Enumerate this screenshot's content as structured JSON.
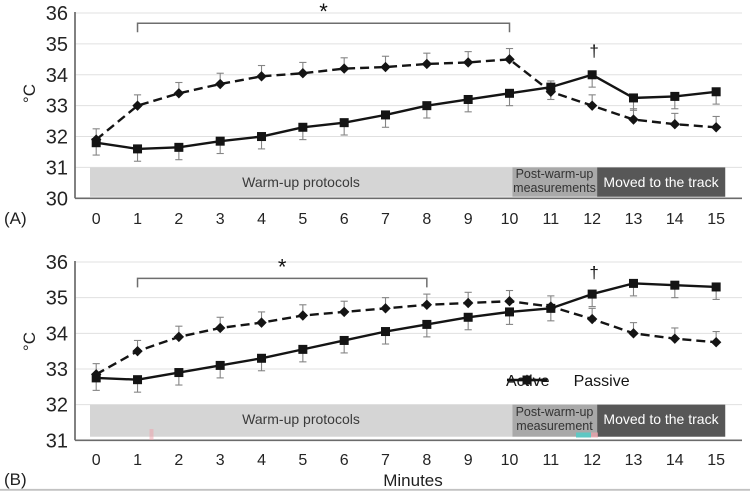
{
  "figure": {
    "xlabel": "Minutes"
  },
  "colors": {
    "series": "#141414",
    "error_bar": "#858585",
    "grid": "#e0e0e0",
    "axis": "#6b6b6b",
    "band_light": "#d5d5d5",
    "band_mid": "#a9a9a9",
    "band_dark": "#575757",
    "bracket": "#6e6e6e",
    "text": "#242424",
    "annotation": "#111111",
    "artifact_teal": "#5ec7c3",
    "artifact_pink": "#f0a0aa",
    "bottom_rule": "#c2c2c2"
  },
  "legend": {
    "items": [
      {
        "label": "Active",
        "marker": "square",
        "line": "solid"
      },
      {
        "label": "Passive",
        "marker": "diamond",
        "line": "dashed"
      }
    ]
  },
  "chart_data": [
    {
      "type": "line",
      "panel_label": "(A)",
      "ylabel": "°C",
      "x": [
        0,
        1,
        2,
        3,
        4,
        5,
        6,
        7,
        8,
        9,
        10,
        11,
        12,
        13,
        14,
        15
      ],
      "ylim": [
        30,
        36
      ],
      "yticks": [
        30,
        31,
        32,
        33,
        34,
        35,
        36
      ],
      "grid": true,
      "legend_position": "none",
      "series": [
        {
          "name": "Active",
          "marker": "square",
          "line": "solid",
          "error_direction": "down",
          "error": 0.4,
          "values": [
            31.8,
            31.6,
            31.65,
            31.85,
            32.0,
            32.3,
            32.45,
            32.7,
            33.0,
            33.2,
            33.4,
            33.6,
            34.0,
            33.25,
            33.3,
            33.45
          ]
        },
        {
          "name": "Passive",
          "marker": "diamond",
          "line": "dashed",
          "error_direction": "up",
          "error": 0.35,
          "values": [
            31.9,
            33.0,
            33.4,
            33.7,
            33.95,
            34.05,
            34.2,
            34.25,
            34.35,
            34.4,
            34.5,
            33.45,
            33.0,
            32.55,
            32.4,
            32.3
          ]
        }
      ],
      "bands": {
        "y_top": 31.0,
        "y_bottom": 30.05,
        "items": [
          {
            "label": "Warm-up protocols",
            "x_from": -0.15,
            "x_to": 10.07,
            "shade": "light"
          },
          {
            "label": "Post-warm-up\nmeasurements",
            "x_from": 10.07,
            "x_to": 12.12,
            "shade": "mid"
          },
          {
            "label": "Moved to the track",
            "x_from": 12.12,
            "x_to": 15.22,
            "shade": "dark"
          }
        ]
      },
      "annotations": {
        "bracket": {
          "symbol": "*",
          "x_from": 1,
          "x_to": 10,
          "y": 35.67
        },
        "dagger": {
          "symbol": "†",
          "x": 12,
          "y": 34.6
        }
      }
    },
    {
      "type": "line",
      "panel_label": "(B)",
      "ylabel": "°C",
      "x": [
        0,
        1,
        2,
        3,
        4,
        5,
        6,
        7,
        8,
        9,
        10,
        11,
        12,
        13,
        14,
        15
      ],
      "ylim": [
        31,
        36
      ],
      "yticks": [
        31,
        32,
        33,
        34,
        35,
        36
      ],
      "grid": true,
      "legend_position": "inside-bottom-right",
      "series": [
        {
          "name": "Active",
          "marker": "square",
          "line": "solid",
          "error_direction": "down",
          "error": 0.35,
          "values": [
            32.75,
            32.7,
            32.9,
            33.1,
            33.3,
            33.55,
            33.8,
            34.05,
            34.25,
            34.45,
            34.6,
            34.7,
            35.1,
            35.4,
            35.35,
            35.3
          ]
        },
        {
          "name": "Passive",
          "marker": "diamond",
          "line": "dashed",
          "error_direction": "up",
          "error": 0.3,
          "values": [
            32.85,
            33.5,
            33.9,
            34.15,
            34.3,
            34.5,
            34.6,
            34.7,
            34.8,
            34.85,
            34.9,
            34.75,
            34.4,
            34.0,
            33.85,
            33.75
          ]
        }
      ],
      "bands": {
        "y_top": 32.0,
        "y_bottom": 31.1,
        "items": [
          {
            "label": "Warm-up protocols",
            "x_from": -0.15,
            "x_to": 10.07,
            "shade": "light"
          },
          {
            "label": "Post-warm-up\nmeasurement",
            "x_from": 10.07,
            "x_to": 12.12,
            "shade": "mid"
          },
          {
            "label": "Moved to the track",
            "x_from": 12.12,
            "x_to": 15.22,
            "shade": "dark"
          }
        ]
      },
      "annotations": {
        "bracket": {
          "symbol": "*",
          "x_from": 1,
          "x_to": 8,
          "y": 35.54
        },
        "dagger": {
          "symbol": "†",
          "x": 12,
          "y": 35.55
        }
      }
    }
  ]
}
